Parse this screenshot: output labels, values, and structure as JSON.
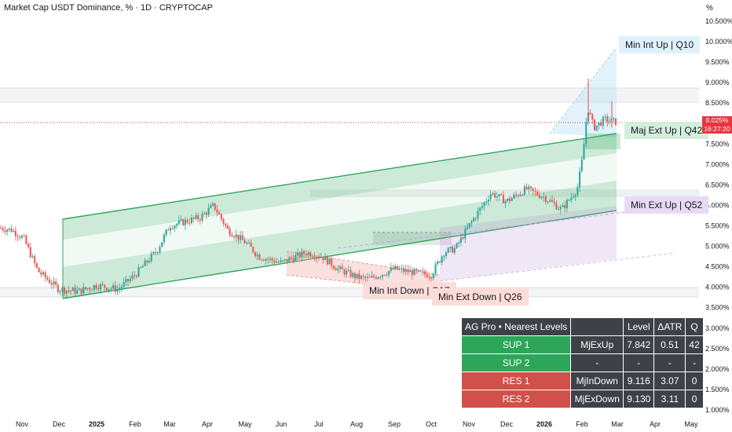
{
  "header": {
    "title": "Market Cap USDT Dominance, % · 1D · CRYPTOCAP",
    "unit": "%"
  },
  "price_tag": {
    "value": "8.025%",
    "countdown": "16:27:20",
    "color": "#e8353f"
  },
  "colors": {
    "up": "#26a69a",
    "down": "#ef5350",
    "channel_green": "#2ea65a",
    "channel_purple": "#b48ed8",
    "channel_red": "#f2a5a0",
    "projection_blue": "#bfe3f5"
  },
  "zone_labels": {
    "min_int_up": "Min Int Up | Q10",
    "maj_ext_up": "Maj Ext Up | Q42",
    "min_ext_up": "Min Ext Up | Q52",
    "min_int_down": "Min Int Down | Q17",
    "min_ext_down": "Min Ext Down | Q26"
  },
  "levels_table": {
    "header": [
      "AG Pro • Nearest Levels",
      "",
      "Level",
      "ΔATR",
      "Q"
    ],
    "rows": [
      {
        "type": "sup",
        "label": "SUP 1",
        "name": "MjExUp",
        "level": "7.842",
        "datr": "0.51",
        "q": "42"
      },
      {
        "type": "sup",
        "label": "SUP 2",
        "name": "-",
        "level": "-",
        "datr": "-",
        "q": "-"
      },
      {
        "type": "res",
        "label": "RES 1",
        "name": "MjInDown",
        "level": "9.116",
        "datr": "3.07",
        "q": "0"
      },
      {
        "type": "res",
        "label": "RES 2",
        "name": "MjExDown",
        "level": "9.130",
        "datr": "3.11",
        "q": "0"
      }
    ]
  },
  "chart_data": {
    "type": "candlestick",
    "title": "Market Cap USDT Dominance, % · 1D · CRYPTOCAP",
    "y_ticks": [
      "10.500%",
      "10.000%",
      "9.500%",
      "9.000%",
      "8.500%",
      "8.000%",
      "7.500%",
      "7.000%",
      "6.500%",
      "6.000%",
      "5.500%",
      "5.000%",
      "4.500%",
      "4.000%",
      "3.500%",
      "3.000%",
      "2.500%",
      "2.000%",
      "1.500%",
      "1.000%"
    ],
    "x_ticks": [
      "Nov",
      "Dec",
      "2025",
      "Feb",
      "Mar",
      "Apr",
      "May",
      "Jun",
      "Jul",
      "Aug",
      "Sep",
      "Oct",
      "Nov",
      "Dec",
      "2026",
      "Feb",
      "Mar",
      "Apr",
      "May"
    ],
    "bold_x_ticks": [
      "2025",
      "2026"
    ],
    "ylim": [
      0.9,
      10.8
    ],
    "last_value": 8.025,
    "series_close_approx": [
      {
        "x": "Nov",
        "y": 5.45
      },
      {
        "x": "Dec",
        "y": 3.95
      },
      {
        "x": "2025",
        "y": 4.05
      },
      {
        "x": "Feb",
        "y": 4.3
      },
      {
        "x": "Mar",
        "y": 5.5
      },
      {
        "x": "Apr",
        "y": 5.8
      },
      {
        "x": "May",
        "y": 5.1
      },
      {
        "x": "Jun",
        "y": 4.6
      },
      {
        "x": "Jul",
        "y": 4.8
      },
      {
        "x": "Aug",
        "y": 4.25
      },
      {
        "x": "Sep",
        "y": 4.45
      },
      {
        "x": "Oct",
        "y": 4.3
      },
      {
        "x": "Nov",
        "y": 5.6
      },
      {
        "x": "Dec",
        "y": 6.3
      },
      {
        "x": "2026",
        "y": 6.2
      },
      {
        "x": "Feb",
        "y": 8.2
      },
      {
        "x": "Mar",
        "y": 8.025
      }
    ]
  }
}
